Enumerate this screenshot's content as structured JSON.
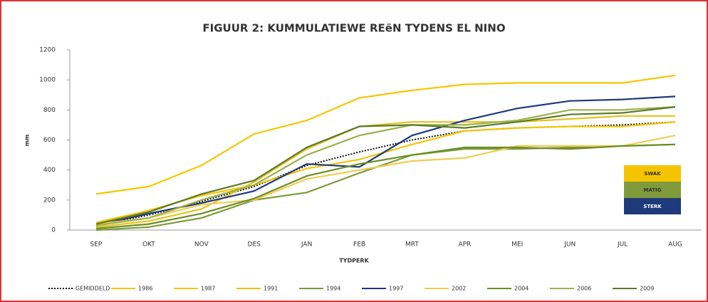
{
  "chart_data": {
    "type": "line",
    "title": "FIGUUR 2: KUMMULATIEWE REëN TYDENS EL NINO",
    "xlabel": "TYDPERK",
    "ylabel": "mm",
    "categories": [
      "SEP",
      "OKT",
      "NOV",
      "DES",
      "JAN",
      "FEB",
      "MRT",
      "APR",
      "MEI",
      "JUN",
      "JUL",
      "AUG"
    ],
    "ylim": [
      0,
      1200
    ],
    "yticks": [
      0,
      200,
      400,
      600,
      800,
      1000,
      1200
    ],
    "series": [
      {
        "name": "GEMIDDELD",
        "color": "#111111",
        "style": "dotted",
        "values": [
          30,
          100,
          190,
          290,
          430,
          520,
          600,
          660,
          680,
          690,
          700,
          720
        ]
      },
      {
        "name": "1986",
        "color": "#f5c400",
        "style": "solid",
        "values": [
          50,
          130,
          230,
          300,
          410,
          470,
          570,
          660,
          680,
          690,
          690,
          720
        ]
      },
      {
        "name": "1987",
        "color": "#f7c600",
        "style": "solid",
        "values": [
          240,
          290,
          430,
          640,
          730,
          880,
          930,
          970,
          980,
          980,
          980,
          1030
        ]
      },
      {
        "name": "1991",
        "color": "#e8c21a",
        "style": "solid",
        "values": [
          20,
          60,
          140,
          320,
          540,
          690,
          720,
          720,
          720,
          740,
          760,
          760
        ]
      },
      {
        "name": "1994",
        "color": "#7f9a3a",
        "style": "solid",
        "values": [
          0,
          20,
          80,
          200,
          250,
          380,
          500,
          540,
          540,
          550,
          560,
          570
        ]
      },
      {
        "name": "1997",
        "color": "#1f3a7a",
        "style": "solid",
        "values": [
          30,
          110,
          180,
          260,
          440,
          420,
          630,
          730,
          810,
          860,
          870,
          890
        ]
      },
      {
        "name": "2002",
        "color": "#f0cc50",
        "style": "solid",
        "values": [
          40,
          80,
          170,
          200,
          340,
          400,
          460,
          480,
          560,
          560,
          560,
          630
        ]
      },
      {
        "name": "2004",
        "color": "#6b8e23",
        "style": "solid",
        "values": [
          10,
          40,
          110,
          210,
          360,
          440,
          500,
          550,
          550,
          540,
          560,
          570
        ]
      },
      {
        "name": "2006",
        "color": "#9bb04a",
        "style": "solid",
        "values": [
          30,
          80,
          200,
          300,
          500,
          630,
          700,
          700,
          730,
          800,
          800,
          820
        ]
      },
      {
        "name": "2009",
        "color": "#5b7a2a",
        "style": "solid",
        "values": [
          40,
          120,
          240,
          330,
          550,
          690,
          700,
          680,
          720,
          770,
          780,
          820
        ]
      }
    ],
    "strength_key": [
      {
        "label": "SWAK",
        "color": "#f5c400"
      },
      {
        "label": "MATIG",
        "color": "#7f9a3a"
      },
      {
        "label": "STERK",
        "color": "#1f3a7a"
      }
    ]
  }
}
